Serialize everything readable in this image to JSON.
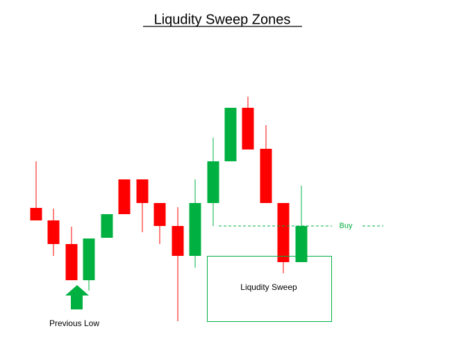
{
  "header": {
    "title": "Liqudity Sweep Zones"
  },
  "annotations": {
    "buy": "Buy",
    "sweep_zone": "Liqudity Sweep",
    "previous_low": "Previous Low"
  }
}
